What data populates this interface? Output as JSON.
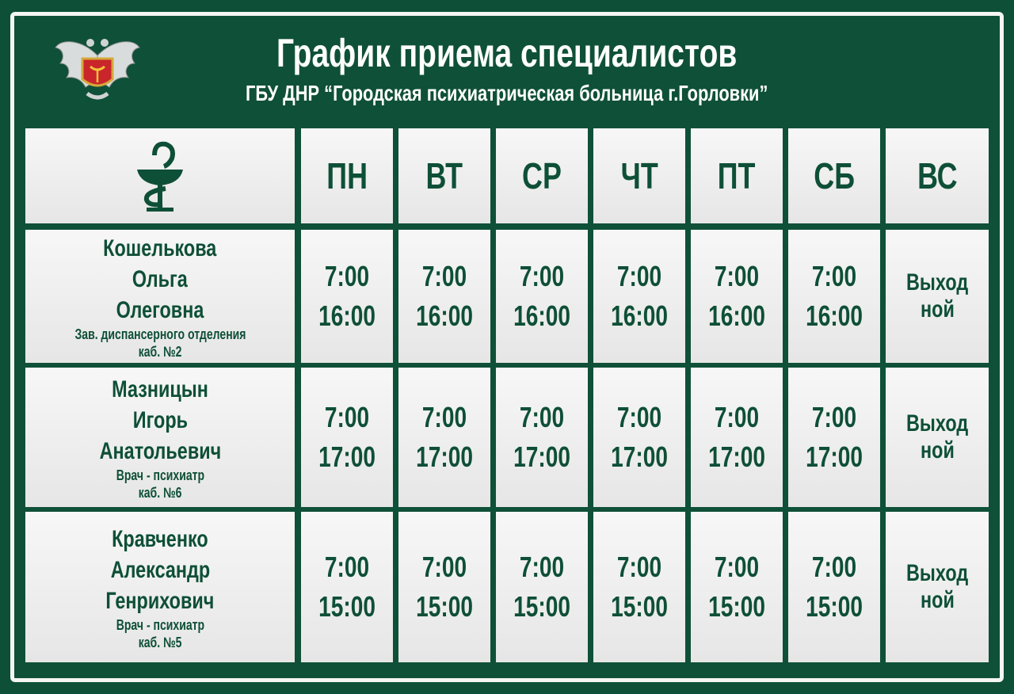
{
  "header": {
    "title": "График приема специалистов",
    "subtitle": "ГБУ ДНР  “Городская психиатрическая больница г.Горловки”",
    "logo": "coat-of-arms-with-bowl-of-hygieia"
  },
  "colors": {
    "background": "#0e4f37",
    "cell": "#eeeeee",
    "text": "#0e4f37"
  },
  "table": {
    "corner_icon": "bowl-of-hygieia-icon",
    "days": [
      "ПН",
      "ВТ",
      "СР",
      "ЧТ",
      "ПТ",
      "СБ",
      "ВС"
    ],
    "rows": [
      {
        "surname": "Кошелькова",
        "first_name": "Ольга",
        "patronymic": "Олеговна",
        "position": "Зав. диспансерного отделения",
        "room": "каб. №2",
        "hours": [
          [
            "7:00",
            "16:00"
          ],
          [
            "7:00",
            "16:00"
          ],
          [
            "7:00",
            "16:00"
          ],
          [
            "7:00",
            "16:00"
          ],
          [
            "7:00",
            "16:00"
          ],
          [
            "7:00",
            "16:00"
          ]
        ],
        "sunday": [
          "Выход",
          "ной"
        ]
      },
      {
        "surname": "Мазницын",
        "first_name": "Игорь",
        "patronymic": "Анатольевич",
        "position": "Врач - психиатр",
        "room": "каб. №6",
        "hours": [
          [
            "7:00",
            "17:00"
          ],
          [
            "7:00",
            "17:00"
          ],
          [
            "7:00",
            "17:00"
          ],
          [
            "7:00",
            "17:00"
          ],
          [
            "7:00",
            "17:00"
          ],
          [
            "7:00",
            "17:00"
          ]
        ],
        "sunday": [
          "Выход",
          "ной"
        ]
      },
      {
        "surname": "Кравченко",
        "first_name": "Александр",
        "patronymic": "Генрихович",
        "position": "Врач - психиатр",
        "room": "каб. №5",
        "hours": [
          [
            "7:00",
            "15:00"
          ],
          [
            "7:00",
            "15:00"
          ],
          [
            "7:00",
            "15:00"
          ],
          [
            "7:00",
            "15:00"
          ],
          [
            "7:00",
            "15:00"
          ],
          [
            "7:00",
            "15:00"
          ]
        ],
        "sunday": [
          "Выход",
          "ной"
        ]
      }
    ]
  }
}
